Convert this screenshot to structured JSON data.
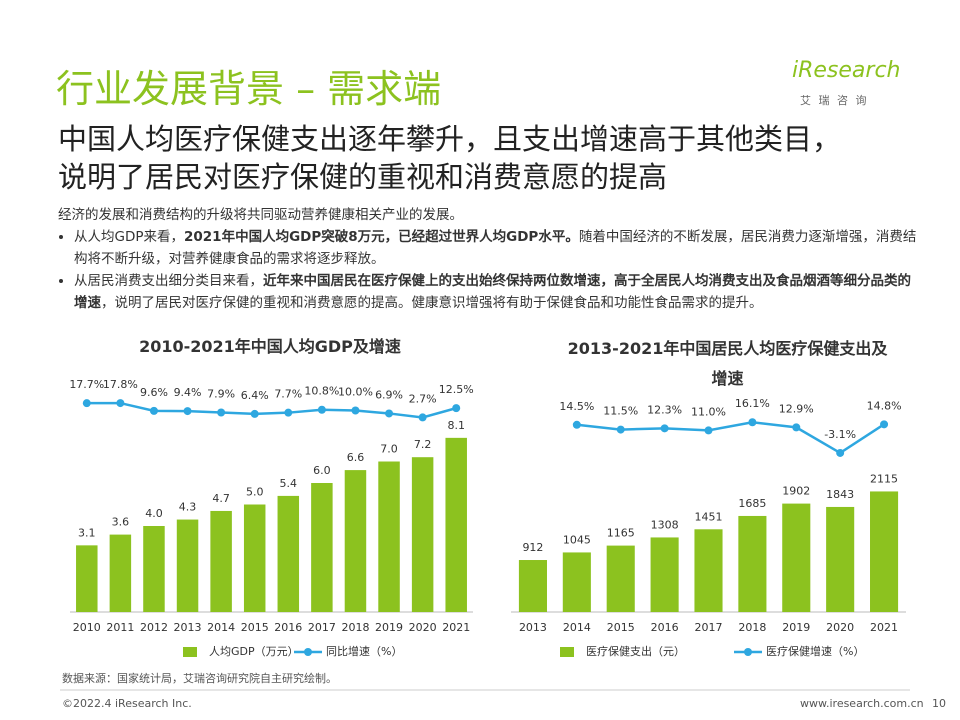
{
  "header": {
    "title": "行业发展背景 – 需求端",
    "logo": "iResearch",
    "logo_sub": "艾 瑞 咨 询",
    "subtitle": [
      "中国人均医疗保健支出逐年攀升，且支出增速高于其他类目，",
      "说明了居民对医疗保健的重视和消费意愿的提高"
    ]
  },
  "body": {
    "intro": "经济的发展和消费结构的升级将共同驱动营养健康相关产业的发展。",
    "bullets": [
      [
        "从人均GDP来看，",
        "2021年中国人均GDP突破8万元，已经超过世界人均GDP水平。",
        "随着中国经济的不断发展，居民消费力逐渐增强，消费结构将不断升级，对营养健康食品的需求将逐步释放。"
      ],
      [
        "从居民消费支出细分类目来看，",
        "近年来中国居民在医疗保健上的支出始终保持两位数增速，高于全居民人均消费支出及食品烟酒等细分品类的增速",
        "，说明了居民对医疗保健的重视和消费意愿的提高。健康意识增强将有助于保健食品和功能性食品需求的提升。"
      ]
    ]
  },
  "chart_data": [
    {
      "type": "bar",
      "title": "2010-2021年中国人均GDP及增速",
      "categories": [
        "2010",
        "2011",
        "2012",
        "2013",
        "2014",
        "2015",
        "2016",
        "2017",
        "2018",
        "2019",
        "2020",
        "2021"
      ],
      "ylim": [
        0,
        10
      ],
      "y2lim": [
        0,
        20
      ],
      "series": [
        {
          "name": "人均GDP（万元）",
          "type": "bar",
          "color": "#8cc21f",
          "values": [
            3.1,
            3.6,
            4.0,
            4.3,
            4.7,
            5.0,
            5.4,
            6.0,
            6.6,
            7.0,
            7.2,
            8.1
          ],
          "value_labels": [
            "3.1",
            "3.6",
            "4.0",
            "4.3",
            "4.7",
            "5.0",
            "5.4",
            "6.0",
            "6.6",
            "7.0",
            "7.2",
            "8.1"
          ]
        },
        {
          "name": "同比增速（%）",
          "type": "line",
          "axis": "y2",
          "color": "#2ea7e0",
          "values": [
            17.7,
            17.8,
            9.6,
            9.4,
            7.9,
            6.4,
            7.7,
            10.8,
            10.0,
            6.9,
            2.7,
            12.5
          ],
          "value_labels": [
            "17.7%",
            "17.8%",
            "9.6%",
            "9.4%",
            "7.9%",
            "6.4%",
            "7.7%",
            "10.8%",
            "10.0%",
            "6.9%",
            "2.7%",
            "12.5%"
          ]
        }
      ]
    },
    {
      "type": "bar",
      "title": "2013-2021年中国居民人均医疗保健支出及增速",
      "categories": [
        "2013",
        "2014",
        "2015",
        "2016",
        "2017",
        "2018",
        "2019",
        "2020",
        "2021"
      ],
      "ylim": [
        0,
        4000
      ],
      "y2lim": [
        -5,
        20
      ],
      "series": [
        {
          "name": "医疗保健支出（元）",
          "type": "bar",
          "color": "#8cc21f",
          "values": [
            912,
            1045,
            1165,
            1308,
            1451,
            1685,
            1902,
            1843,
            2115
          ]
        },
        {
          "name": "医疗保健增速（%）",
          "type": "line",
          "axis": "y2",
          "color": "#2ea7e0",
          "values": [
            null,
            14.5,
            11.5,
            12.3,
            11.0,
            16.1,
            12.9,
            -3.1,
            14.8
          ],
          "value_labels": [
            null,
            "14.5%",
            "11.5%",
            "12.3%",
            "11.0%",
            "16.1%",
            "12.9%",
            "-3.1%",
            "14.8%"
          ]
        }
      ]
    }
  ],
  "footer": {
    "source": "数据来源：国家统计局，艾瑞咨询研究院自主研究绘制。",
    "copyright": "©2022.4 iResearch Inc.",
    "url": "www.iresearch.com.cn",
    "page": "10"
  }
}
